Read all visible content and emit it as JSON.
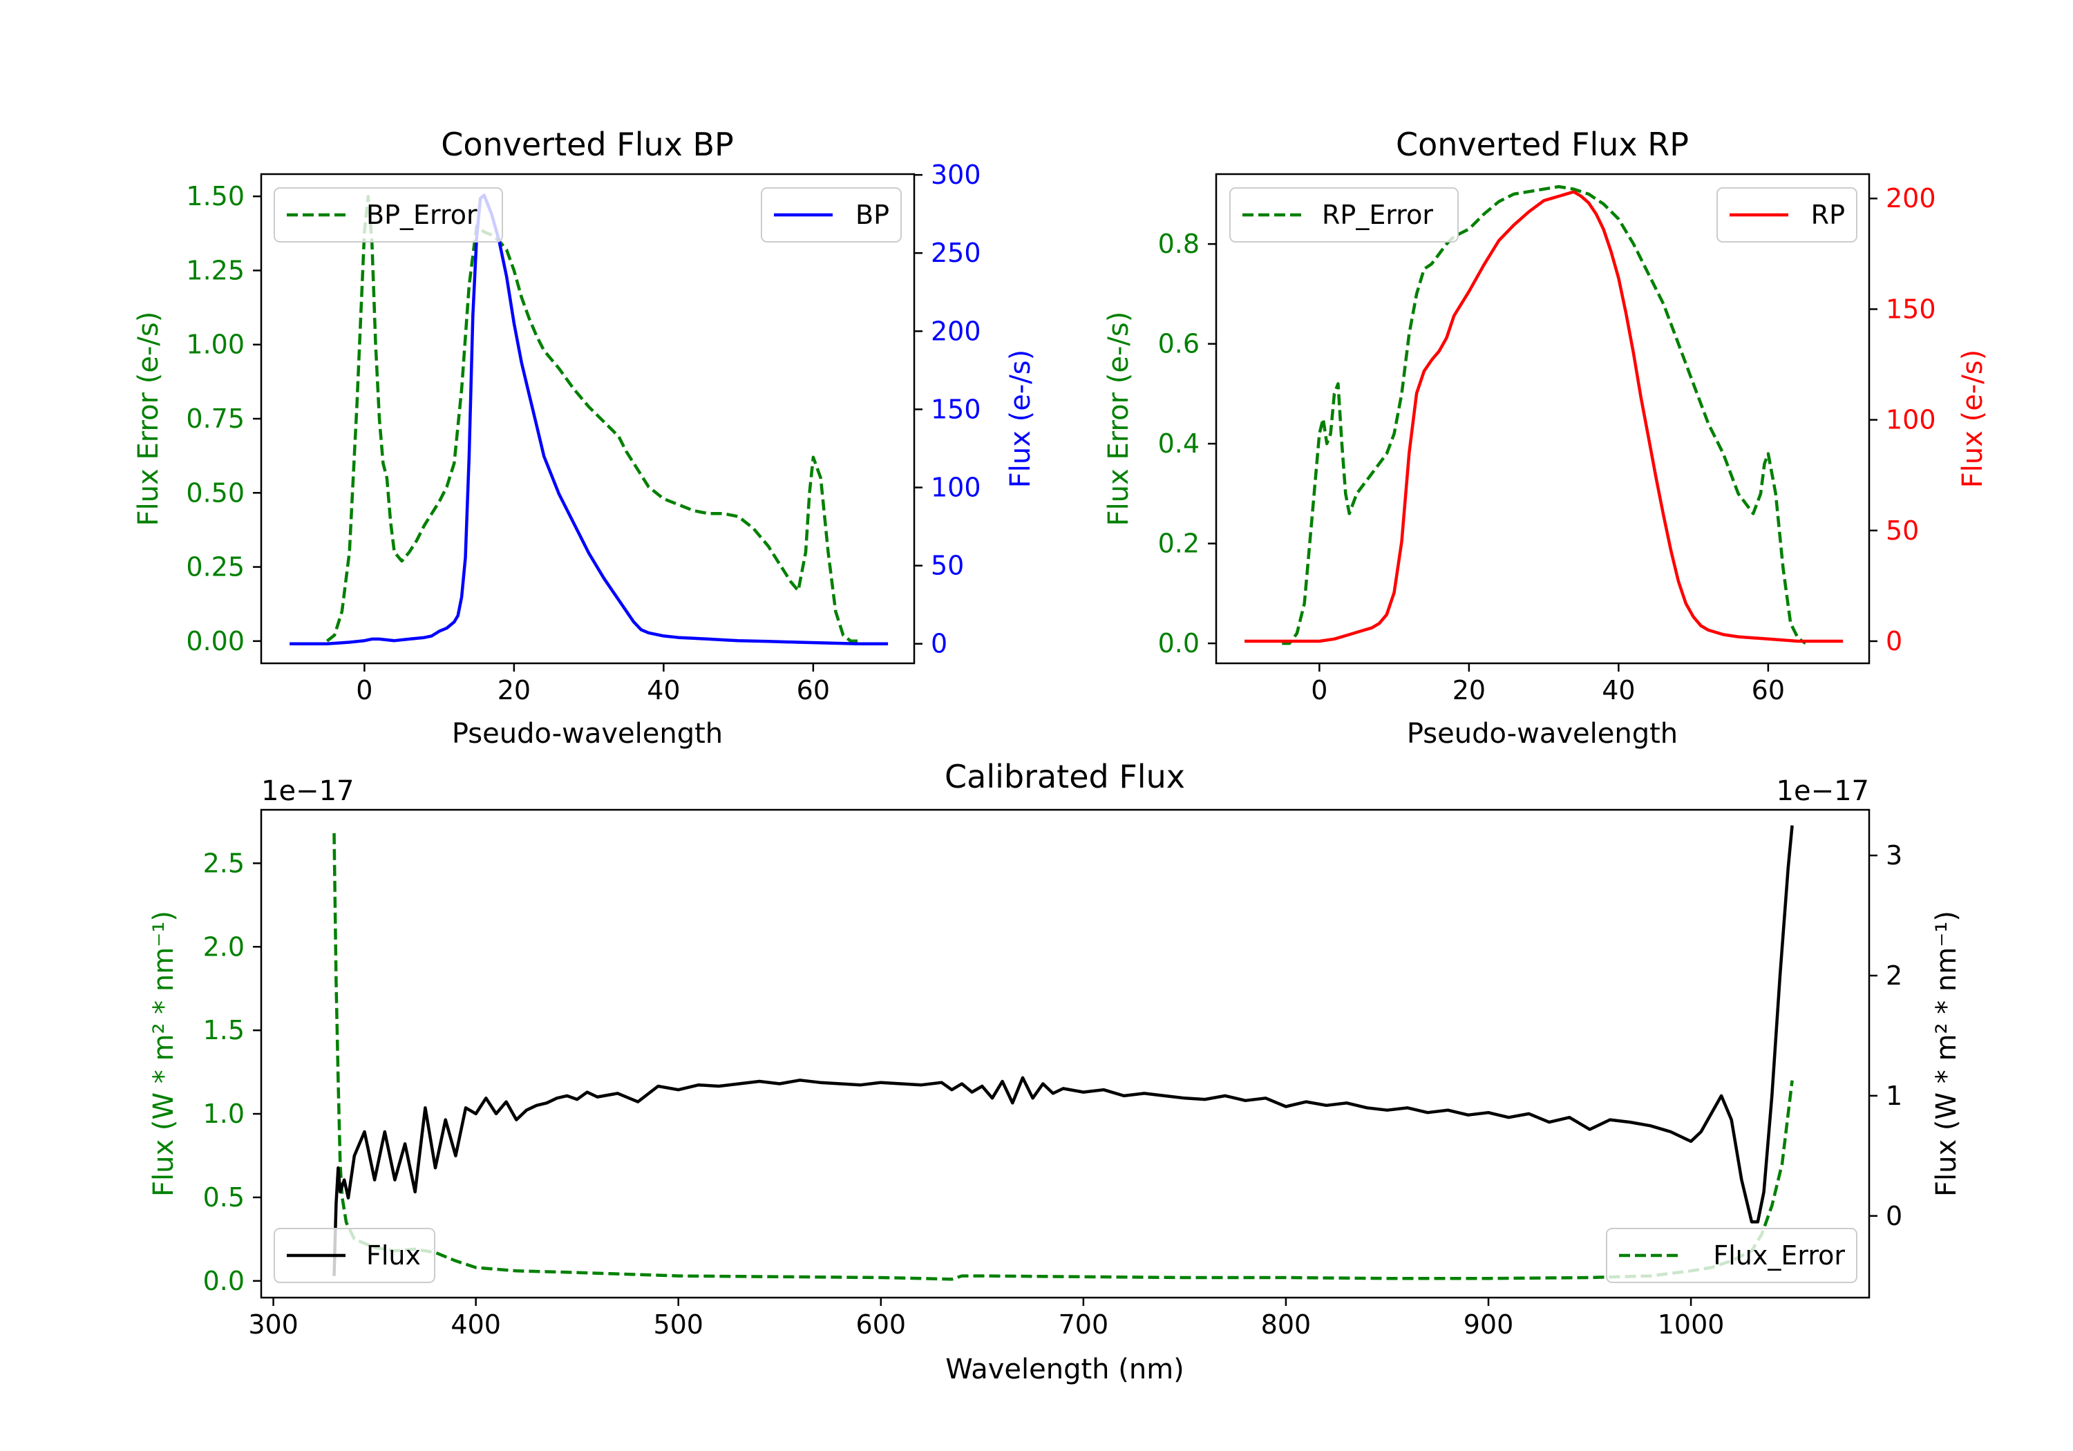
{
  "colors": {
    "green": "#008000",
    "blue": "#0000ff",
    "red": "#ff0000",
    "black": "#000000",
    "frame": "#000000"
  },
  "chart_data": [
    {
      "id": "bp",
      "type": "line",
      "title": "Converted Flux BP",
      "xlabel": "Pseudo-wavelength",
      "ylabel_left": "Flux Error (e-/s)",
      "ylabel_right": "Flux (e-/s)",
      "xlim": [
        -13.8,
        73.5
      ],
      "ylim_left": [
        -0.075,
        1.575
      ],
      "ylim_right": [
        -12.5,
        300.5
      ],
      "xticks": [
        0,
        20,
        40,
        60
      ],
      "yticks_left": [
        0.0,
        0.25,
        0.5,
        0.75,
        1.0,
        1.25,
        1.5
      ],
      "ytick_labels_left": [
        "0.00",
        "0.25",
        "0.50",
        "0.75",
        "1.00",
        "1.25",
        "1.50"
      ],
      "yticks_right": [
        0,
        50,
        100,
        150,
        200,
        250,
        300
      ],
      "legend_left": {
        "label": "BP_Error",
        "position": "upper left"
      },
      "legend_right": {
        "label": "BP",
        "position": "upper right"
      },
      "series": [
        {
          "name": "BP_Error",
          "axis": "left",
          "style": "dashed",
          "color": "#008000",
          "x": [
            -5,
            -4,
            -3,
            -2,
            -1,
            0,
            0.5,
            1,
            1.5,
            2,
            2.5,
            3,
            3.5,
            4,
            5,
            6,
            7,
            8,
            9,
            10,
            11,
            12,
            13,
            14,
            15,
            16,
            17,
            18,
            19,
            20,
            21,
            22,
            23,
            24,
            25,
            26,
            28,
            30,
            32,
            34,
            35,
            37,
            38,
            40,
            42,
            44,
            46,
            48,
            50,
            52,
            54,
            55,
            56,
            57,
            58,
            59,
            59.5,
            60,
            61,
            62,
            63,
            64,
            65,
            66
          ],
          "y": [
            0.0,
            0.02,
            0.1,
            0.3,
            0.8,
            1.38,
            1.5,
            1.35,
            1.0,
            0.75,
            0.6,
            0.55,
            0.4,
            0.3,
            0.27,
            0.3,
            0.34,
            0.39,
            0.43,
            0.47,
            0.52,
            0.6,
            0.85,
            1.2,
            1.4,
            1.38,
            1.37,
            1.35,
            1.32,
            1.25,
            1.16,
            1.09,
            1.03,
            0.98,
            0.95,
            0.92,
            0.85,
            0.79,
            0.74,
            0.69,
            0.64,
            0.56,
            0.52,
            0.48,
            0.46,
            0.44,
            0.43,
            0.43,
            0.42,
            0.38,
            0.32,
            0.28,
            0.24,
            0.2,
            0.17,
            0.3,
            0.5,
            0.62,
            0.55,
            0.3,
            0.1,
            0.02,
            0.0,
            0.0
          ]
        },
        {
          "name": "BP",
          "axis": "right",
          "style": "solid",
          "color": "#0000ff",
          "x": [
            -10,
            -5,
            -2,
            0,
            1,
            2,
            4,
            6,
            8,
            9,
            10,
            11,
            12,
            12.5,
            13,
            13.5,
            14,
            14.5,
            15,
            15.5,
            16,
            17,
            18,
            19,
            20,
            21,
            22,
            23,
            24,
            26,
            28,
            30,
            32,
            34,
            36,
            37,
            38,
            40,
            42,
            44,
            46,
            48,
            50,
            54,
            58,
            62,
            66,
            70
          ],
          "y": [
            0,
            0,
            1,
            2,
            3,
            3,
            2,
            3,
            4,
            5,
            8,
            10,
            14,
            18,
            30,
            55,
            120,
            210,
            260,
            285,
            287,
            275,
            258,
            235,
            205,
            180,
            160,
            140,
            120,
            96,
            77,
            58,
            42,
            28,
            14,
            9,
            7,
            5,
            4,
            3.5,
            3,
            2.5,
            2,
            1.5,
            1,
            0.5,
            0,
            0
          ]
        }
      ]
    },
    {
      "id": "rp",
      "type": "line",
      "title": "Converted Flux RP",
      "xlabel": "Pseudo-wavelength",
      "ylabel_left": "Flux Error (e-/s)",
      "ylabel_right": "Flux (e-/s)",
      "xlim": [
        -13.8,
        73.5
      ],
      "ylim_left": [
        -0.04,
        0.94
      ],
      "ylim_right": [
        -10,
        211
      ],
      "xticks": [
        0,
        20,
        40,
        60
      ],
      "yticks_left": [
        0.0,
        0.2,
        0.4,
        0.6,
        0.8
      ],
      "ytick_labels_left": [
        "0.0",
        "0.2",
        "0.4",
        "0.6",
        "0.8"
      ],
      "yticks_right": [
        0,
        50,
        100,
        150,
        200
      ],
      "legend_left": {
        "label": "RP_Error",
        "position": "upper left"
      },
      "legend_right": {
        "label": "RP",
        "position": "upper right"
      },
      "series": [
        {
          "name": "RP_Error",
          "axis": "left",
          "style": "dashed",
          "color": "#008000",
          "x": [
            -5,
            -4,
            -3,
            -2,
            -1,
            0,
            0.5,
            1,
            1.5,
            2,
            2.5,
            3,
            3.5,
            4,
            5,
            6,
            7,
            8,
            9,
            10,
            11,
            12,
            13,
            14,
            15,
            16,
            17,
            18,
            20,
            22,
            24,
            26,
            28,
            30,
            32,
            34,
            36,
            38,
            40,
            42,
            44,
            46,
            48,
            50,
            52,
            54,
            55,
            56,
            57,
            58,
            59,
            59.5,
            60,
            61,
            62,
            63,
            64,
            65
          ],
          "y": [
            0.0,
            0.0,
            0.02,
            0.08,
            0.25,
            0.42,
            0.45,
            0.4,
            0.42,
            0.5,
            0.52,
            0.4,
            0.3,
            0.26,
            0.3,
            0.32,
            0.34,
            0.36,
            0.38,
            0.42,
            0.5,
            0.62,
            0.7,
            0.75,
            0.76,
            0.78,
            0.8,
            0.815,
            0.83,
            0.86,
            0.885,
            0.9,
            0.905,
            0.91,
            0.915,
            0.91,
            0.9,
            0.88,
            0.85,
            0.8,
            0.74,
            0.68,
            0.6,
            0.52,
            0.44,
            0.38,
            0.34,
            0.3,
            0.28,
            0.26,
            0.3,
            0.36,
            0.38,
            0.3,
            0.15,
            0.04,
            0.01,
            0.0
          ]
        },
        {
          "name": "RP",
          "axis": "right",
          "style": "solid",
          "color": "#ff0000",
          "x": [
            -10,
            -5,
            0,
            2,
            4,
            6,
            7,
            8,
            9,
            10,
            11,
            12,
            13,
            14,
            15,
            16,
            17,
            18,
            20,
            22,
            24,
            26,
            28,
            30,
            31,
            32,
            33,
            34,
            35,
            36,
            37,
            38,
            39,
            40,
            41,
            42,
            43,
            44,
            45,
            46,
            47,
            48,
            49,
            50,
            51,
            52,
            53,
            54,
            56,
            58,
            60,
            62,
            64,
            66,
            70
          ],
          "y": [
            0,
            0,
            0,
            1,
            3,
            5,
            6,
            8,
            12,
            22,
            45,
            85,
            112,
            122,
            127,
            131,
            137,
            147,
            158,
            170,
            181,
            188,
            194,
            199,
            200,
            201,
            202,
            203,
            201,
            198,
            193,
            186,
            176,
            164,
            148,
            130,
            110,
            92,
            74,
            57,
            41,
            27,
            17,
            11,
            7,
            5,
            4,
            3,
            2,
            1.5,
            1,
            0.5,
            0,
            0,
            0
          ]
        }
      ]
    },
    {
      "id": "cal",
      "type": "line",
      "title": "Calibrated Flux",
      "xlabel": "Wavelength (nm)",
      "ylabel_left": "Flux (W * m² * nm⁻¹)",
      "ylabel_right": "Flux (W * m² * nm⁻¹)",
      "offset_left": "1e−17",
      "offset_right": "1e−17",
      "xlim": [
        294,
        1088
      ],
      "ylim_left": [
        -0.1,
        2.82
      ],
      "ylim_right": [
        -0.68,
        3.38
      ],
      "xticks": [
        300,
        400,
        500,
        600,
        700,
        800,
        900,
        1000
      ],
      "yticks_left": [
        0.0,
        0.5,
        1.0,
        1.5,
        2.0,
        2.5
      ],
      "ytick_labels_left": [
        "0.0",
        "0.5",
        "1.0",
        "1.5",
        "2.0",
        "2.5"
      ],
      "yticks_right": [
        0,
        1,
        2,
        3
      ],
      "legend_left": {
        "label": "Flux",
        "position": "lower left"
      },
      "legend_right": {
        "label": "Flux_Error",
        "position": "lower right"
      },
      "series": [
        {
          "name": "Flux",
          "axis": "right",
          "style": "solid",
          "color": "#000000",
          "x": [
            330,
            331,
            332,
            333,
            335,
            337,
            340,
            345,
            350,
            355,
            360,
            365,
            370,
            375,
            380,
            385,
            390,
            395,
            400,
            405,
            410,
            415,
            420,
            425,
            430,
            435,
            440,
            445,
            450,
            455,
            460,
            470,
            480,
            490,
            500,
            510,
            520,
            530,
            540,
            550,
            560,
            570,
            580,
            590,
            600,
            610,
            620,
            630,
            635,
            640,
            645,
            650,
            655,
            660,
            665,
            670,
            675,
            680,
            685,
            690,
            700,
            710,
            720,
            730,
            740,
            750,
            760,
            770,
            780,
            790,
            800,
            810,
            820,
            830,
            840,
            850,
            860,
            870,
            880,
            890,
            900,
            910,
            920,
            930,
            940,
            950,
            960,
            970,
            980,
            990,
            1000,
            1005,
            1010,
            1015,
            1020,
            1025,
            1030,
            1033,
            1036,
            1040,
            1044,
            1048,
            1050
          ],
          "y": [
            -0.5,
            0.1,
            0.4,
            0.2,
            0.3,
            0.15,
            0.5,
            0.7,
            0.3,
            0.7,
            0.3,
            0.6,
            0.2,
            0.9,
            0.4,
            0.8,
            0.5,
            0.9,
            0.85,
            0.98,
            0.85,
            0.95,
            0.8,
            0.88,
            0.92,
            0.94,
            0.98,
            1.0,
            0.97,
            1.03,
            0.99,
            1.02,
            0.95,
            1.08,
            1.05,
            1.09,
            1.08,
            1.1,
            1.12,
            1.1,
            1.13,
            1.11,
            1.1,
            1.09,
            1.11,
            1.1,
            1.09,
            1.11,
            1.05,
            1.1,
            1.03,
            1.08,
            0.98,
            1.12,
            0.94,
            1.15,
            0.98,
            1.1,
            1.02,
            1.06,
            1.03,
            1.05,
            1.0,
            1.02,
            1.0,
            0.98,
            0.97,
            1.0,
            0.96,
            0.98,
            0.91,
            0.95,
            0.92,
            0.94,
            0.9,
            0.88,
            0.9,
            0.86,
            0.88,
            0.84,
            0.86,
            0.82,
            0.85,
            0.78,
            0.82,
            0.72,
            0.8,
            0.78,
            0.75,
            0.7,
            0.62,
            0.7,
            0.85,
            1.0,
            0.8,
            0.3,
            -0.05,
            -0.05,
            0.2,
            1.0,
            2.0,
            2.9,
            3.25
          ]
        },
        {
          "name": "Flux_Error",
          "axis": "left",
          "style": "dashed",
          "color": "#008000",
          "x": [
            330,
            331,
            332,
            333,
            334,
            336,
            340,
            350,
            360,
            370,
            380,
            390,
            400,
            420,
            450,
            500,
            550,
            600,
            620,
            635,
            640,
            650,
            700,
            750,
            800,
            850,
            900,
            950,
            980,
            1000,
            1010,
            1020,
            1030,
            1035,
            1040,
            1045,
            1050
          ],
          "y": [
            2.68,
            1.8,
            1.2,
            0.7,
            0.5,
            0.35,
            0.25,
            0.2,
            0.18,
            0.19,
            0.17,
            0.12,
            0.08,
            0.06,
            0.05,
            0.03,
            0.025,
            0.02,
            0.015,
            0.01,
            0.03,
            0.03,
            0.025,
            0.02,
            0.02,
            0.015,
            0.015,
            0.02,
            0.03,
            0.06,
            0.08,
            0.12,
            0.18,
            0.28,
            0.45,
            0.7,
            1.2
          ]
        }
      ]
    }
  ]
}
